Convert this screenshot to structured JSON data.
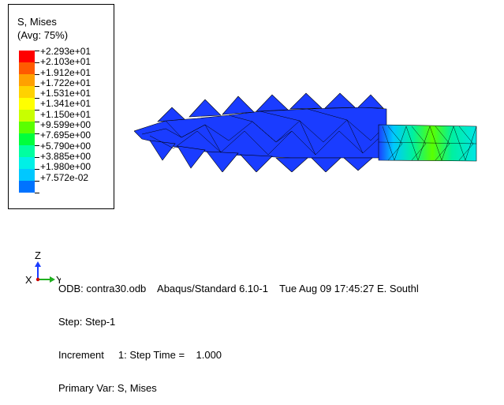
{
  "legend": {
    "title_line1": "S, Mises",
    "title_line2": "(Avg: 75%)",
    "values": [
      "+2.293e+01",
      "+2.103e+01",
      "+1.912e+01",
      "+1.722e+01",
      "+1.531e+01",
      "+1.341e+01",
      "+1.150e+01",
      "+9.599e+00",
      "+7.695e+00",
      "+5.790e+00",
      "+3.885e+00",
      "+1.980e+00",
      "+7.572e-02"
    ],
    "colors": [
      "#ff0000",
      "#ff5a00",
      "#ffa000",
      "#ffd200",
      "#ffff00",
      "#c8ff00",
      "#5aff00",
      "#00ff3c",
      "#00ffa0",
      "#00f0e6",
      "#00c8ff",
      "#0073ff",
      "#0000ff"
    ]
  },
  "triad": {
    "z_label": "Z",
    "x_label": "X",
    "y_label": "Y"
  },
  "info": {
    "line1": "ODB: contra30.odb    Abaqus/Standard 6.10-1    Tue Aug 09 17:45:27 E. Southl",
    "line2": "Step: Step-1",
    "line3": "Increment     1: Step Time =    1.000",
    "line4": "Primary Var: S, Mises"
  }
}
